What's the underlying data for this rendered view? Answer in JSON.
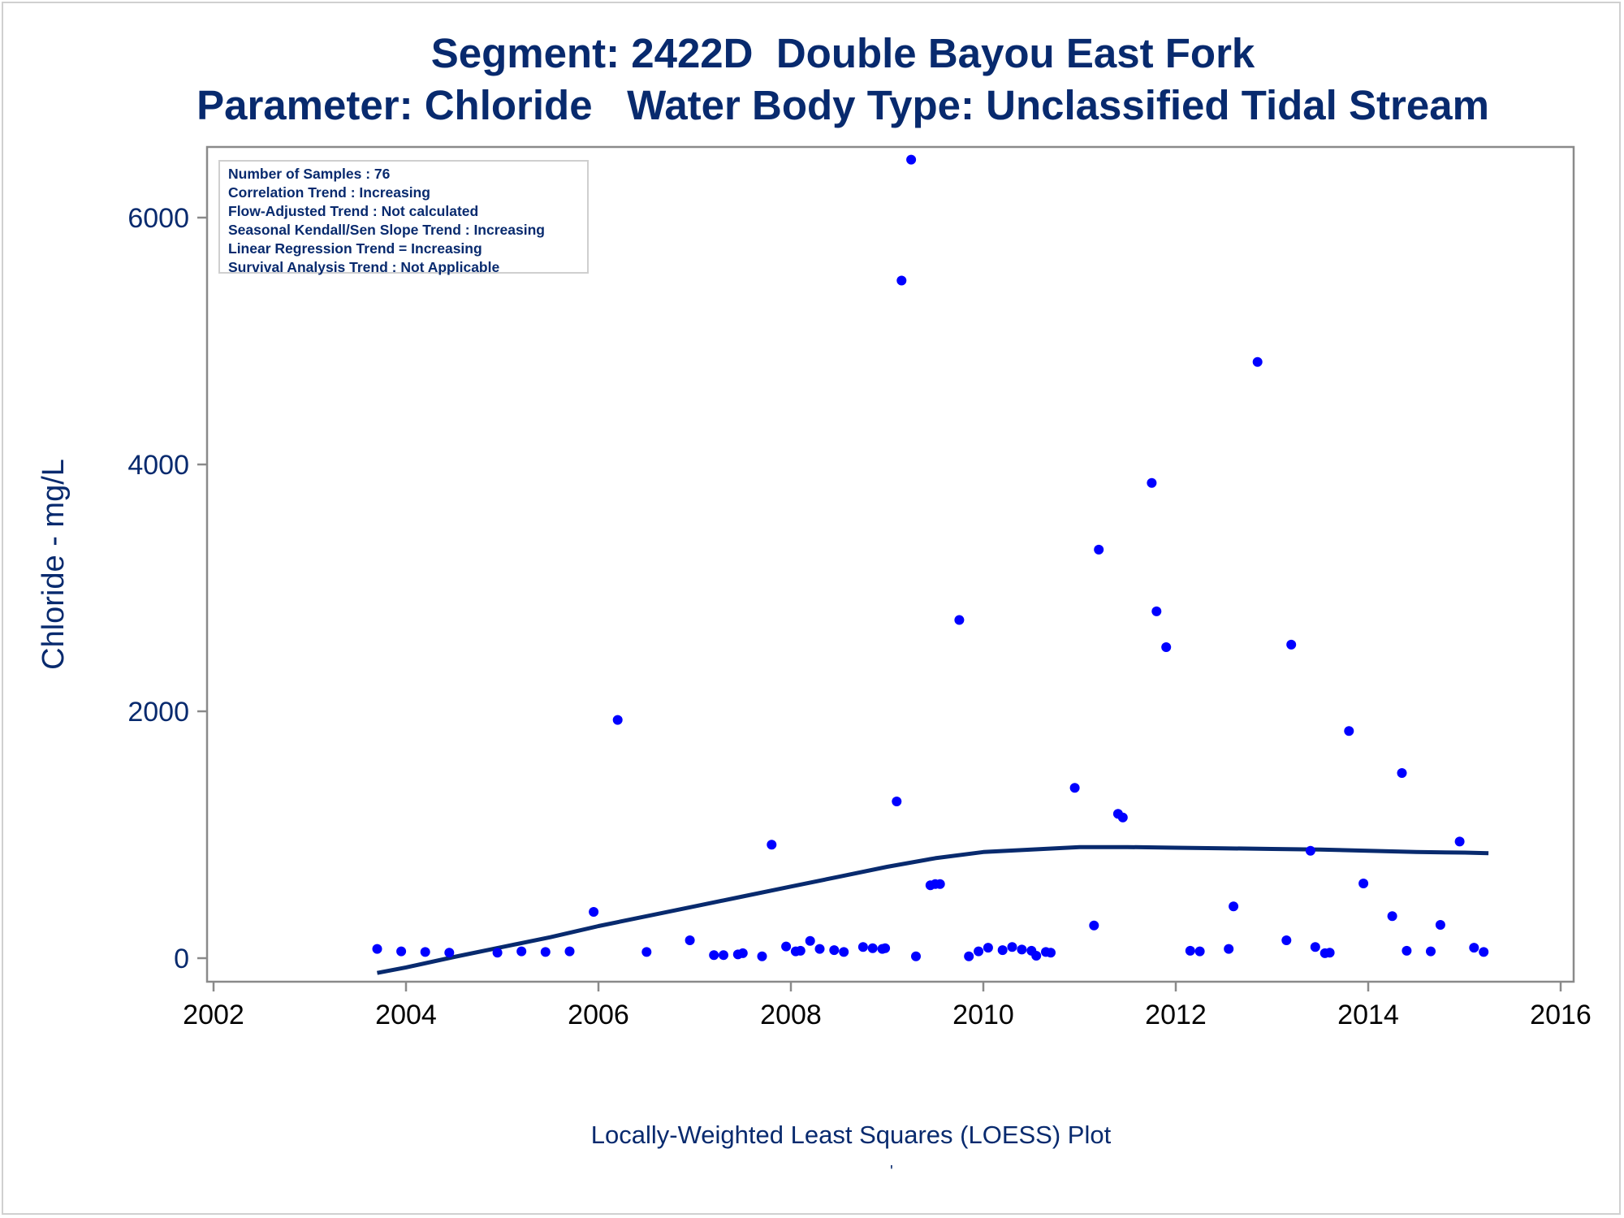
{
  "chart_data": {
    "type": "scatter",
    "title": "Segment: 2422D  Double Bayou East Fork",
    "subtitle": "Parameter: Chloride   Water Body Type: Unclassified Tidal Stream",
    "xlabel": "Locally-Weighted Least Squares (LOESS) Plot",
    "ylabel": "Chloride - mg/L",
    "xlim": [
      2002,
      2016
    ],
    "ylim": [
      -200,
      6600
    ],
    "xticks": [
      "2002",
      "2004",
      "2006",
      "2008",
      "2010",
      "2012",
      "2014",
      "2016"
    ],
    "yticks": [
      "0",
      "2000",
      "4000",
      "6000"
    ],
    "grid": false,
    "stats_box": [
      "Number of Samples : 76",
      "Correlation Trend : Increasing",
      "Flow-Adjusted Trend : Not calculated",
      "Seasonal Kendall/Sen Slope Trend : Increasing",
      "Linear Regression Trend = Increasing",
      "Survival Analysis Trend : Not Applicable"
    ],
    "footnote_mark": "'",
    "series": [
      {
        "type": "scatter",
        "color": "#0000ff",
        "points": [
          [
            2003.7,
            75
          ],
          [
            2003.95,
            55
          ],
          [
            2004.2,
            50
          ],
          [
            2004.45,
            45
          ],
          [
            2004.95,
            45
          ],
          [
            2005.2,
            55
          ],
          [
            2005.45,
            50
          ],
          [
            2005.7,
            55
          ],
          [
            2005.95,
            375
          ],
          [
            2006.2,
            1930
          ],
          [
            2006.5,
            50
          ],
          [
            2006.95,
            145
          ],
          [
            2007.2,
            25
          ],
          [
            2007.3,
            25
          ],
          [
            2007.45,
            30
          ],
          [
            2007.5,
            40
          ],
          [
            2007.7,
            15
          ],
          [
            2007.8,
            920
          ],
          [
            2007.95,
            95
          ],
          [
            2008.05,
            55
          ],
          [
            2008.1,
            60
          ],
          [
            2008.2,
            140
          ],
          [
            2008.3,
            75
          ],
          [
            2008.45,
            65
          ],
          [
            2008.55,
            50
          ],
          [
            2008.75,
            90
          ],
          [
            2008.85,
            80
          ],
          [
            2008.95,
            75
          ],
          [
            2008.98,
            80
          ],
          [
            2009.1,
            1270
          ],
          [
            2009.15,
            5490
          ],
          [
            2009.25,
            6470
          ],
          [
            2009.3,
            15
          ],
          [
            2009.45,
            590
          ],
          [
            2009.5,
            600
          ],
          [
            2009.55,
            600
          ],
          [
            2009.75,
            2740
          ],
          [
            2009.85,
            15
          ],
          [
            2009.95,
            55
          ],
          [
            2010.05,
            85
          ],
          [
            2010.2,
            65
          ],
          [
            2010.3,
            90
          ],
          [
            2010.4,
            70
          ],
          [
            2010.5,
            60
          ],
          [
            2010.55,
            20
          ],
          [
            2010.65,
            50
          ],
          [
            2010.7,
            45
          ],
          [
            2010.95,
            1380
          ],
          [
            2011.15,
            265
          ],
          [
            2011.2,
            3310
          ],
          [
            2011.4,
            1170
          ],
          [
            2011.45,
            1140
          ],
          [
            2011.75,
            3850
          ],
          [
            2011.8,
            2810
          ],
          [
            2011.9,
            2520
          ],
          [
            2012.15,
            60
          ],
          [
            2012.25,
            55
          ],
          [
            2012.55,
            75
          ],
          [
            2012.6,
            420
          ],
          [
            2012.85,
            4830
          ],
          [
            2013.15,
            145
          ],
          [
            2013.2,
            2540
          ],
          [
            2013.4,
            870
          ],
          [
            2013.45,
            90
          ],
          [
            2013.55,
            40
          ],
          [
            2013.6,
            45
          ],
          [
            2013.8,
            1840
          ],
          [
            2013.95,
            605
          ],
          [
            2014.25,
            340
          ],
          [
            2014.35,
            1500
          ],
          [
            2014.4,
            60
          ],
          [
            2014.65,
            55
          ],
          [
            2014.75,
            270
          ],
          [
            2014.95,
            945
          ],
          [
            2015.1,
            85
          ],
          [
            2015.2,
            50
          ]
        ]
      },
      {
        "type": "line",
        "color": "#082a6e",
        "points": [
          [
            2003.7,
            -120
          ],
          [
            2004.0,
            -75
          ],
          [
            2004.5,
            10
          ],
          [
            2005.0,
            90
          ],
          [
            2005.5,
            170
          ],
          [
            2006.0,
            260
          ],
          [
            2006.5,
            340
          ],
          [
            2007.0,
            420
          ],
          [
            2007.5,
            500
          ],
          [
            2008.0,
            580
          ],
          [
            2008.5,
            660
          ],
          [
            2009.0,
            740
          ],
          [
            2009.5,
            810
          ],
          [
            2010.0,
            860
          ],
          [
            2010.5,
            880
          ],
          [
            2011.0,
            900
          ],
          [
            2011.5,
            900
          ],
          [
            2012.0,
            895
          ],
          [
            2012.5,
            890
          ],
          [
            2013.0,
            885
          ],
          [
            2013.5,
            880
          ],
          [
            2014.0,
            870
          ],
          [
            2014.5,
            860
          ],
          [
            2015.0,
            855
          ],
          [
            2015.25,
            850
          ]
        ]
      }
    ]
  }
}
